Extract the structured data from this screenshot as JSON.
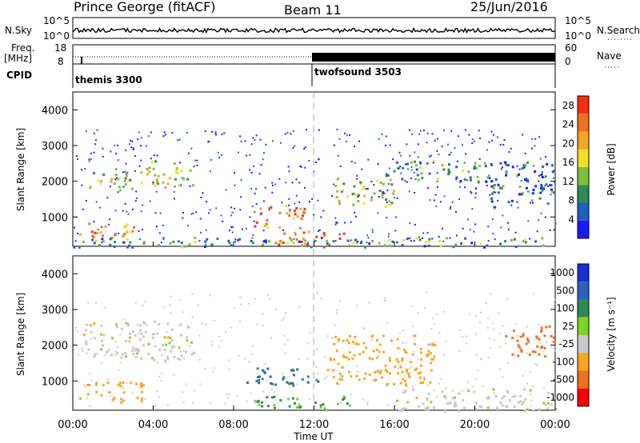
{
  "header": {
    "station": "Prince George (fitACF)",
    "beam": "Beam 11",
    "date": "25/Jun/2016"
  },
  "summary": {
    "nsky_label": "N.Sky",
    "nsky_ticks": [
      "10^5",
      "10^0"
    ],
    "nsearch_label": "N.Search",
    "nsearch_ticks": [
      "10^5",
      "10^0"
    ],
    "freq_label": "Freq.",
    "freq_unit": "[MHz]",
    "freq_ticks": [
      "18",
      "8"
    ],
    "nave_label": "Nave",
    "nave_ticks": [
      "60",
      "0"
    ],
    "cpid_label": "CPID",
    "cpid_segments": [
      {
        "name": "themis 3300",
        "start_h": 0,
        "end_h": 12
      },
      {
        "name": "twofsound 3503",
        "start_h": 12,
        "end_h": 24
      }
    ]
  },
  "chart_data": [
    {
      "type": "heatmap",
      "panel": "power",
      "ylabel": "Slant Range [km]",
      "xlabel": "Time UT",
      "x_range_hours": [
        0,
        24
      ],
      "ylim": [
        180,
        4500
      ],
      "y_ticks": [
        1000,
        2000,
        3000,
        4000
      ],
      "colorbar": {
        "label": "Power [dB]",
        "ticks": [
          4,
          8,
          12,
          16,
          20,
          24,
          28
        ],
        "range": [
          0,
          30
        ],
        "colors": [
          "#1a1aff",
          "#1f5fbf",
          "#2e8b57",
          "#7cbf3a",
          "#f0e020",
          "#f5a623",
          "#f07020",
          "#f03010"
        ]
      },
      "regions": [
        {
          "t0": 0.3,
          "t1": 3.0,
          "r0": 400,
          "r1": 900,
          "v": 22
        },
        {
          "t0": 0.8,
          "t1": 3.0,
          "r0": 1700,
          "r1": 2300,
          "v": 14
        },
        {
          "t0": 3.0,
          "t1": 6.0,
          "r0": 1900,
          "r1": 2600,
          "v": 14
        },
        {
          "t0": 9.0,
          "t1": 11.5,
          "r0": 700,
          "r1": 1400,
          "v": 23
        },
        {
          "t0": 10.0,
          "t1": 13.5,
          "r0": 250,
          "r1": 650,
          "v": 27
        },
        {
          "t0": 13.0,
          "t1": 16.0,
          "r0": 1300,
          "r1": 2100,
          "v": 15
        },
        {
          "t0": 15.5,
          "t1": 20.5,
          "r0": 2000,
          "r1": 2600,
          "v": 9
        },
        {
          "t0": 0,
          "t1": 24,
          "r0": 180,
          "r1": 450,
          "v": 10
        },
        {
          "t0": 20.5,
          "t1": 24,
          "r0": 1400,
          "r1": 2600,
          "v": 6
        }
      ]
    },
    {
      "type": "heatmap",
      "panel": "velocity",
      "ylabel": "Slant Range [km]",
      "xlabel": "Time UT",
      "x_range_hours": [
        0,
        24
      ],
      "ylim": [
        180,
        4500
      ],
      "y_ticks": [
        1000,
        2000,
        3000,
        4000
      ],
      "x_tick_labels": [
        "00:00",
        "04:00",
        "08:00",
        "12:00",
        "16:00",
        "20:00",
        "00:00"
      ],
      "colorbar": {
        "label": "Velocity [m s⁻¹]",
        "ticks": [
          "1000",
          "500",
          "100",
          "25",
          "-25",
          "-100",
          "-500",
          "-1000"
        ],
        "colors": [
          "#1a2fcf",
          "#2f5fbf",
          "#2e8b57",
          "#7ed321",
          "#c8c8c8",
          "#f5a623",
          "#f07020",
          "#ff0000"
        ]
      },
      "regions": [
        {
          "t0": 0.3,
          "t1": 3.5,
          "r0": 400,
          "r1": 1000,
          "v": -100
        },
        {
          "t0": 0.5,
          "t1": 6.0,
          "r0": 1600,
          "r1": 2700,
          "v": 0
        },
        {
          "t0": 8.5,
          "t1": 12.5,
          "r0": 900,
          "r1": 1400,
          "v": 300
        },
        {
          "t0": 9.0,
          "t1": 14.0,
          "r0": 180,
          "r1": 600,
          "v": 60
        },
        {
          "t0": 12.5,
          "t1": 18.0,
          "r0": 900,
          "r1": 2300,
          "v": -200
        },
        {
          "t0": 16.0,
          "t1": 24.0,
          "r0": 180,
          "r1": 800,
          "v": 0
        },
        {
          "t0": 21.5,
          "t1": 24.0,
          "r0": 1700,
          "r1": 2600,
          "v": -600
        }
      ]
    }
  ],
  "axes": {
    "x_tick_labels": [
      "00:00",
      "04:00",
      "08:00",
      "12:00",
      "16:00",
      "20:00",
      "00:00"
    ],
    "x_label": "Time UT",
    "y_label": "Slant Range [km]",
    "y_tick_labels": [
      "1000",
      "2000",
      "3000",
      "4000"
    ]
  }
}
